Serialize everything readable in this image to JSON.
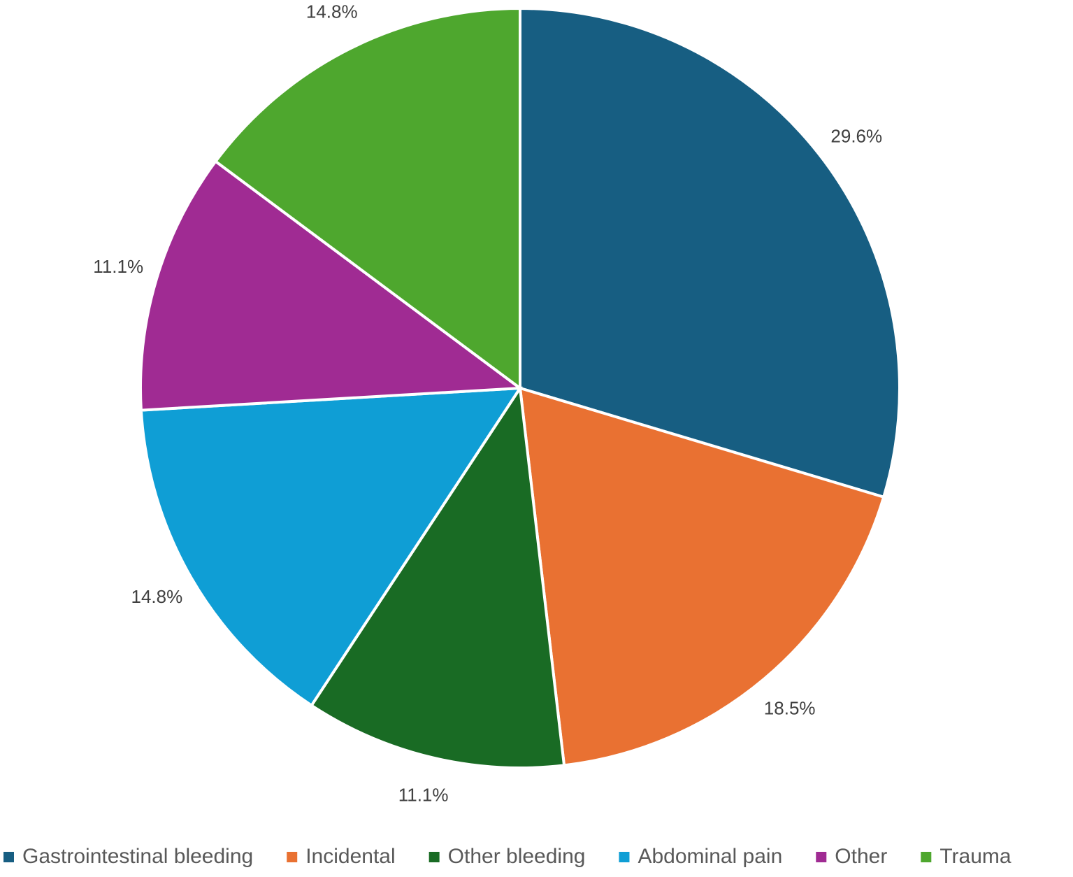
{
  "chart_data": {
    "type": "pie",
    "categories": [
      "Gastrointestinal bleeding",
      "Incidental",
      "Other bleeding",
      "Abdominal pain",
      "Other",
      "Trauma"
    ],
    "values": [
      29.6,
      18.5,
      11.1,
      14.8,
      11.1,
      14.8
    ],
    "value_labels": [
      "29.6%",
      "18.5%",
      "11.1%",
      "14.8%",
      "11.1%",
      "14.8%"
    ],
    "colors": [
      "#175e82",
      "#e97132",
      "#196b24",
      "#0f9ed5",
      "#a02b93",
      "#4ea72e"
    ],
    "legend": "bottom"
  }
}
